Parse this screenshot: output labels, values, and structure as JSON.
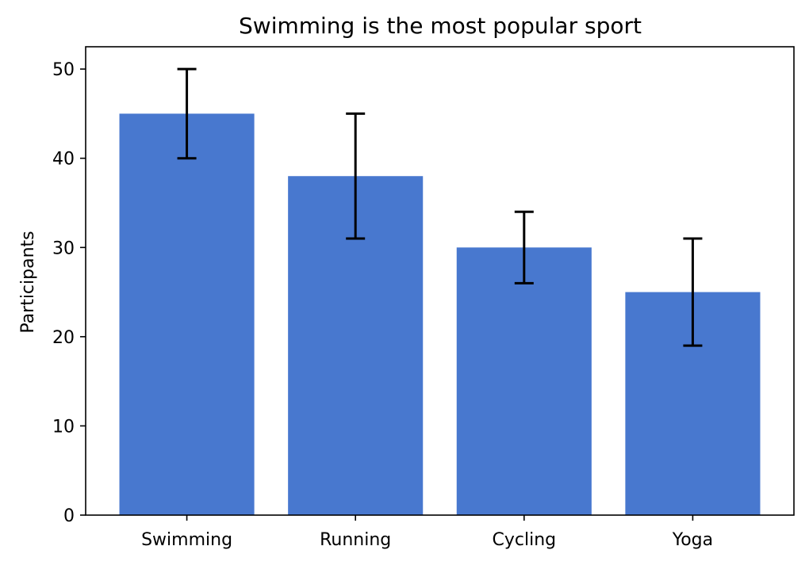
{
  "chart_data": {
    "type": "bar",
    "title": "Swimming is the most popular sport",
    "xlabel": "",
    "ylabel": "Participants",
    "categories": [
      "Swimming",
      "Running",
      "Cycling",
      "Yoga"
    ],
    "values": [
      45,
      38,
      30,
      25
    ],
    "errors": [
      5,
      7,
      4,
      6
    ],
    "ylim": [
      0,
      52.5
    ],
    "yticks": [
      0,
      10,
      20,
      30,
      40,
      50
    ],
    "grid": false,
    "bar_color": "#4878cf",
    "error_color": "#000000"
  }
}
